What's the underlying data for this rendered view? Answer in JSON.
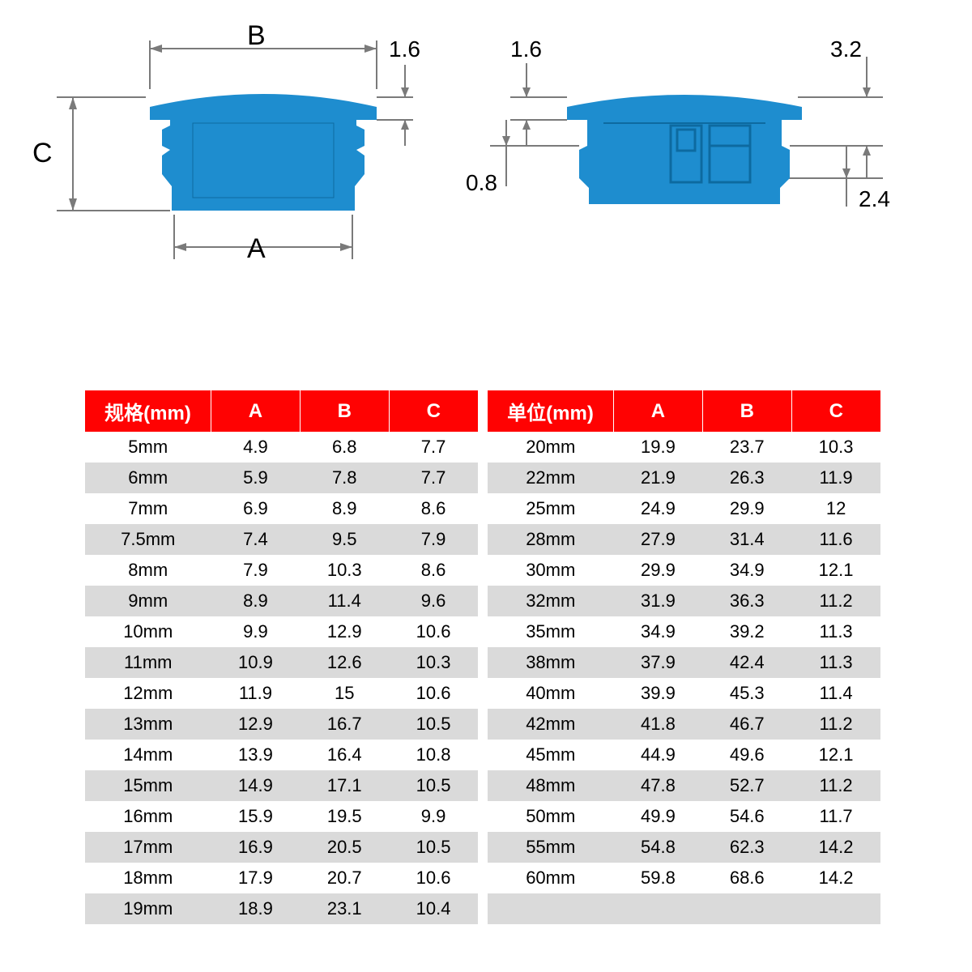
{
  "colors": {
    "part_fill": "#1e8dcf",
    "dim_line": "#7a7a7a",
    "text": "#000000",
    "header_bg": "#ff0202",
    "header_fg": "#ffffff",
    "row_odd": "#ffffff",
    "row_even": "#dadada",
    "page_bg": "#ffffff"
  },
  "typography": {
    "dim_label_fontsize": 28,
    "header_fontsize": 24,
    "cell_fontsize": 22
  },
  "diagram": {
    "left": {
      "labels": {
        "A": "A",
        "B": "B",
        "C": "C",
        "top_thickness": "1.6"
      }
    },
    "right": {
      "labels": {
        "tl": "1.6",
        "tr": "3.2",
        "bl": "0.8",
        "br": "2.4"
      }
    }
  },
  "table_left": {
    "headers": [
      "规格(mm)",
      "A",
      "B",
      "C"
    ],
    "rows": [
      [
        "5mm",
        "4.9",
        "6.8",
        "7.7"
      ],
      [
        "6mm",
        "5.9",
        "7.8",
        "7.7"
      ],
      [
        "7mm",
        "6.9",
        "8.9",
        "8.6"
      ],
      [
        "7.5mm",
        "7.4",
        "9.5",
        "7.9"
      ],
      [
        "8mm",
        "7.9",
        "10.3",
        "8.6"
      ],
      [
        "9mm",
        "8.9",
        "11.4",
        "9.6"
      ],
      [
        "10mm",
        "9.9",
        "12.9",
        "10.6"
      ],
      [
        "11mm",
        "10.9",
        "12.6",
        "10.3"
      ],
      [
        "12mm",
        "11.9",
        "15",
        "10.6"
      ],
      [
        "13mm",
        "12.9",
        "16.7",
        "10.5"
      ],
      [
        "14mm",
        "13.9",
        "16.4",
        "10.8"
      ],
      [
        "15mm",
        "14.9",
        "17.1",
        "10.5"
      ],
      [
        "16mm",
        "15.9",
        "19.5",
        "9.9"
      ],
      [
        "17mm",
        "16.9",
        "20.5",
        "10.5"
      ],
      [
        "18mm",
        "17.9",
        "20.7",
        "10.6"
      ],
      [
        "19mm",
        "18.9",
        "23.1",
        "10.4"
      ]
    ]
  },
  "table_right": {
    "headers": [
      "单位(mm)",
      "A",
      "B",
      "C"
    ],
    "rows": [
      [
        "20mm",
        "19.9",
        "23.7",
        "10.3"
      ],
      [
        "22mm",
        "21.9",
        "26.3",
        "11.9"
      ],
      [
        "25mm",
        "24.9",
        "29.9",
        "12"
      ],
      [
        "28mm",
        "27.9",
        "31.4",
        "11.6"
      ],
      [
        "30mm",
        "29.9",
        "34.9",
        "12.1"
      ],
      [
        "32mm",
        "31.9",
        "36.3",
        "11.2"
      ],
      [
        "35mm",
        "34.9",
        "39.2",
        "11.3"
      ],
      [
        "38mm",
        "37.9",
        "42.4",
        "11.3"
      ],
      [
        "40mm",
        "39.9",
        "45.3",
        "11.4"
      ],
      [
        "42mm",
        "41.8",
        "46.7",
        "11.2"
      ],
      [
        "45mm",
        "44.9",
        "49.6",
        "12.1"
      ],
      [
        "48mm",
        "47.8",
        "52.7",
        "11.2"
      ],
      [
        "50mm",
        "49.9",
        "54.6",
        "11.7"
      ],
      [
        "55mm",
        "54.8",
        "62.3",
        "14.2"
      ],
      [
        "60mm",
        "59.8",
        "68.6",
        "14.2"
      ],
      [
        "",
        "",
        "",
        ""
      ]
    ]
  }
}
